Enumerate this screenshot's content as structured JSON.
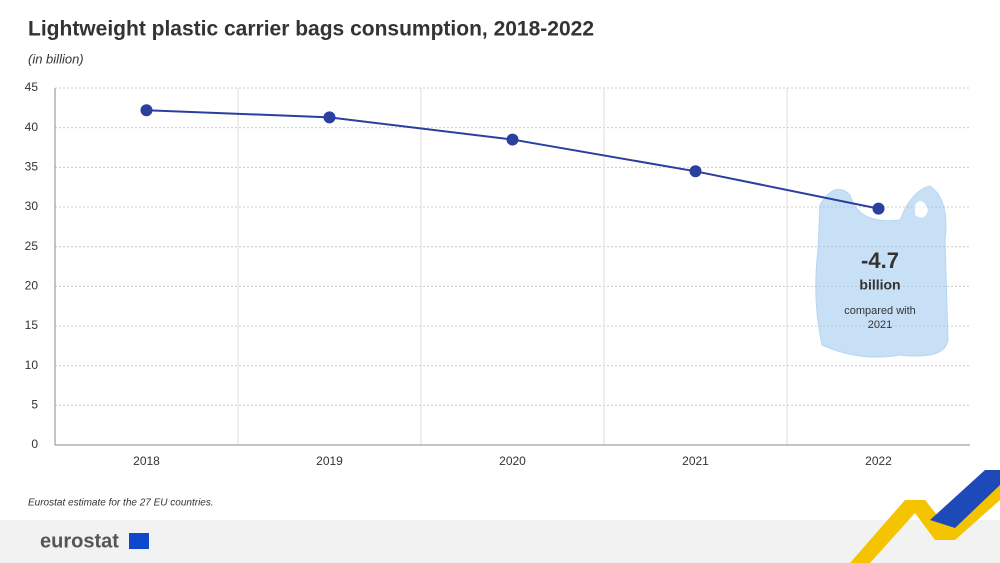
{
  "chart_data": {
    "type": "line",
    "title": "Lightweight plastic carrier bags consumption, 2018-2022",
    "subtitle": "(in billion)",
    "categories": [
      "2018",
      "2019",
      "2020",
      "2021",
      "2022"
    ],
    "series": [
      {
        "name": "Lightweight plastic carrier bags",
        "color": "#2b3f9e",
        "values": [
          42.2,
          41.3,
          38.5,
          34.5,
          29.8
        ]
      }
    ],
    "ylim": [
      0,
      45
    ],
    "yticks": [
      0,
      5,
      10,
      15,
      20,
      25,
      30,
      35,
      40,
      45
    ],
    "grid": true,
    "annotation": {
      "value": "-4.7",
      "unit": "billion",
      "note": [
        "compared with",
        "2021"
      ]
    },
    "footnote": "Eurostat estimate for the 27 EU countries.",
    "logo": "eurostat"
  }
}
